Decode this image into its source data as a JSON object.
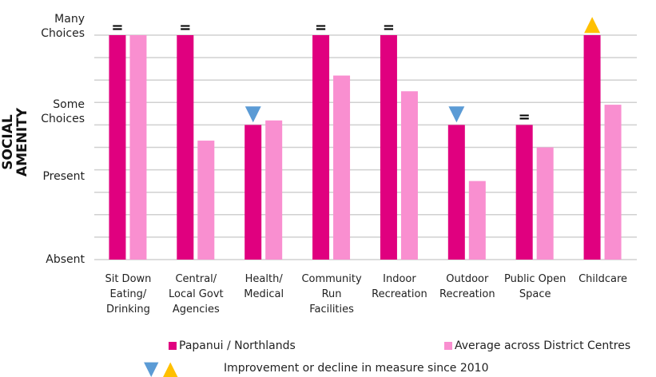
{
  "chart_data": {
    "type": "bar",
    "y_label": "SOCIAL AMENITY",
    "categories": [
      "Sit Down\nEating/\nDrinking",
      "Central/\nLocal Govt\nAgencies",
      "Health/\nMedical",
      "Community\nRun\nFacilities",
      "Indoor\nRecreation",
      "Outdoor\nRecreation",
      "Public Open\nSpace",
      "Childcare"
    ],
    "series": [
      {
        "name": "Papanui / Northlands",
        "color": "#e0007f",
        "values": [
          10,
          10,
          6,
          10,
          10,
          6,
          6,
          10
        ]
      },
      {
        "name": "Average across District Centres",
        "color": "#f98fd0",
        "values": [
          10,
          5.3,
          6.2,
          8.2,
          7.5,
          3.5,
          5,
          6.9
        ]
      }
    ],
    "changes": [
      "=",
      "=",
      "▼",
      "=",
      "=",
      "▼",
      "=",
      "▲"
    ],
    "change_colors": {
      "=": "#000000",
      "▼": "#5b9bd5",
      "▲": "#ffc000"
    },
    "change_note": {
      "symbols": [
        "▼",
        "▲"
      ],
      "text": "Improvement or decline in measure since 2010"
    },
    "ylim": [
      0,
      10
    ],
    "yticks": [
      {
        "value": 0,
        "label": "Absent"
      },
      {
        "value": 3.7,
        "label": "Present"
      },
      {
        "value": 6.6,
        "label": "Some\nChoices"
      },
      {
        "value": 10.4,
        "label": "Many\nChoices"
      }
    ],
    "ygrid": [
      0,
      1,
      2,
      3,
      4,
      5,
      6,
      7,
      8,
      9,
      10
    ]
  }
}
